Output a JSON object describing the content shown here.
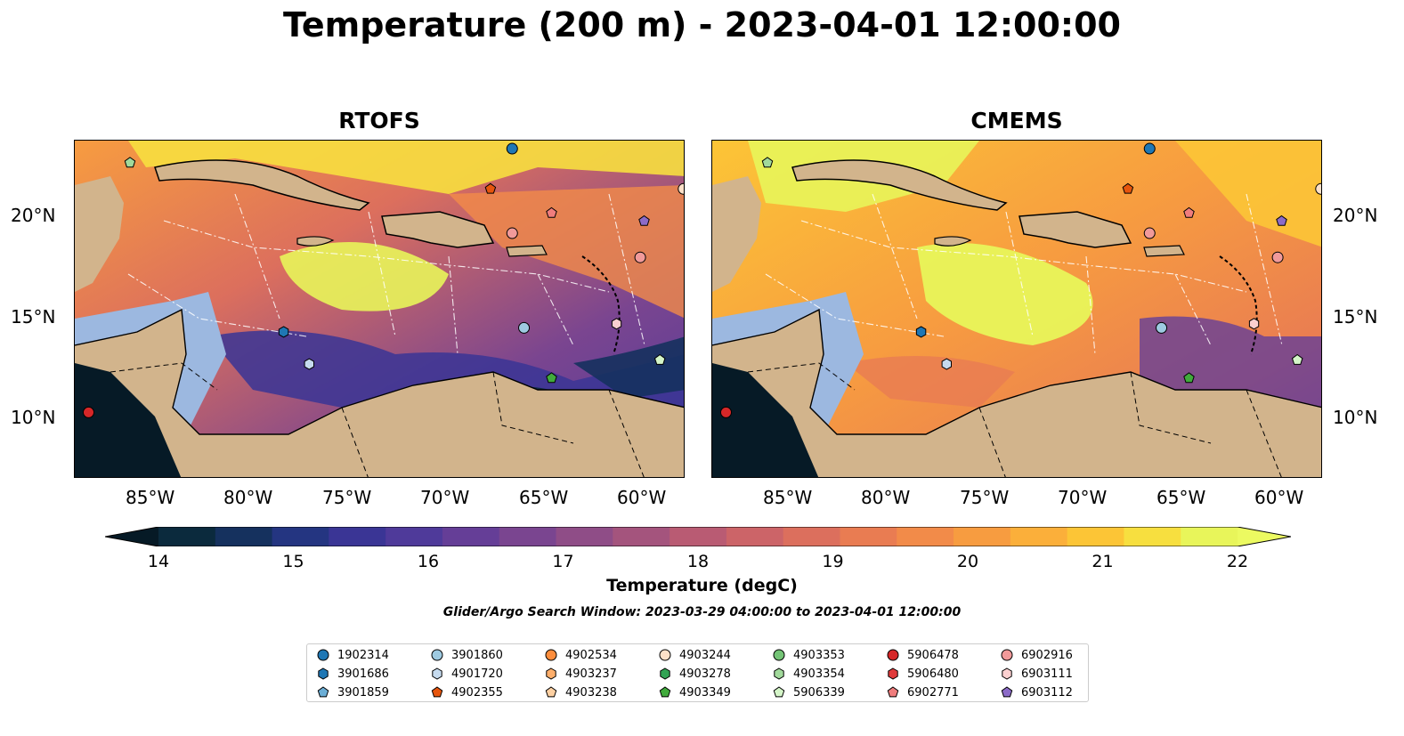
{
  "title": "Temperature (200 m) - 2023-04-01 12:00:00",
  "panels": [
    {
      "title": "RTOFS"
    },
    {
      "title": "CMEMS"
    }
  ],
  "lat_labels": [
    "20°N",
    "15°N",
    "10°N"
  ],
  "lon_labels": [
    "85°W",
    "80°W",
    "75°W",
    "70°W",
    "65°W",
    "60°W"
  ],
  "colorbar": {
    "label": "Temperature (degC)",
    "ticks": [
      "14",
      "15",
      "16",
      "17",
      "18",
      "19",
      "20",
      "21",
      "22"
    ],
    "colors": [
      "#0b2a3d",
      "#15315e",
      "#243581",
      "#3a3595",
      "#4f3a9a",
      "#653e97",
      "#7a4590",
      "#8f4d87",
      "#a4547d",
      "#b95b73",
      "#cc6468",
      "#dc6f5d",
      "#e97c52",
      "#f28b49",
      "#f79c40",
      "#fbaf3a",
      "#fcc536",
      "#f7df3f",
      "#e8f55a"
    ],
    "under_color": "#061a26",
    "over_color": "#ecfa61"
  },
  "search_window": "Glider/Argo Search Window: 2023-03-29 04:00:00 to 2023-04-01 12:00:00",
  "legend": [
    {
      "id": "1902314",
      "marker": "circle",
      "color": "#1f77b4"
    },
    {
      "id": "3901686",
      "marker": "hexagon",
      "color": "#1f77b4"
    },
    {
      "id": "3901859",
      "marker": "pentagon",
      "color": "#6baed6"
    },
    {
      "id": "3901860",
      "marker": "circle",
      "color": "#9ecae1"
    },
    {
      "id": "4901720",
      "marker": "hexagon",
      "color": "#c6dbef"
    },
    {
      "id": "4902355",
      "marker": "pentagon",
      "color": "#e6550d"
    },
    {
      "id": "4902534",
      "marker": "circle",
      "color": "#fd8d3c"
    },
    {
      "id": "4903237",
      "marker": "hexagon",
      "color": "#fdae6b"
    },
    {
      "id": "4903238",
      "marker": "pentagon",
      "color": "#fdd0a2"
    },
    {
      "id": "4903244",
      "marker": "circle",
      "color": "#fde0c8"
    },
    {
      "id": "4903278",
      "marker": "hexagon",
      "color": "#31a354"
    },
    {
      "id": "4903349",
      "marker": "pentagon",
      "color": "#41ab3c"
    },
    {
      "id": "4903353",
      "marker": "circle",
      "color": "#74c476"
    },
    {
      "id": "4903354",
      "marker": "hexagon",
      "color": "#a1d99b"
    },
    {
      "id": "5906339",
      "marker": "pentagon",
      "color": "#d4f5c8"
    },
    {
      "id": "5906478",
      "marker": "circle",
      "color": "#d62728"
    },
    {
      "id": "5906480",
      "marker": "hexagon",
      "color": "#e0393a"
    },
    {
      "id": "6902771",
      "marker": "pentagon",
      "color": "#f07d7d"
    },
    {
      "id": "6902916",
      "marker": "circle",
      "color": "#f19a9a"
    },
    {
      "id": "6903111",
      "marker": "hexagon",
      "color": "#fbd0d0"
    },
    {
      "id": "6903112",
      "marker": "pentagon",
      "color": "#8c6bc8"
    }
  ],
  "floats_on_map": [
    {
      "marker": "pentagon",
      "color": "#a1d99b",
      "lon": -86.2,
      "lat": 22.7
    },
    {
      "marker": "circle",
      "color": "#1f77b4",
      "lon": -66.8,
      "lat": 23.4
    },
    {
      "marker": "pentagon",
      "color": "#e6550d",
      "lon": -67.9,
      "lat": 21.4
    },
    {
      "marker": "pentagon",
      "color": "#f07d7d",
      "lon": -64.8,
      "lat": 20.2
    },
    {
      "marker": "pentagon",
      "color": "#8c6bc8",
      "lon": -60.1,
      "lat": 19.8
    },
    {
      "marker": "circle",
      "color": "#f19a9a",
      "lon": -66.8,
      "lat": 19.2
    },
    {
      "marker": "circle",
      "color": "#f19a9a",
      "lon": -60.3,
      "lat": 18.0
    },
    {
      "marker": "circle",
      "color": "#fde0c8",
      "lon": -58.1,
      "lat": 21.4
    },
    {
      "marker": "circle",
      "color": "#9ecae1",
      "lon": -66.2,
      "lat": 14.5
    },
    {
      "marker": "hexagon",
      "color": "#fbd0d0",
      "lon": -61.5,
      "lat": 14.7
    },
    {
      "marker": "hexagon",
      "color": "#1f77b4",
      "lon": -78.4,
      "lat": 14.3
    },
    {
      "marker": "hexagon",
      "color": "#c6dbef",
      "lon": -77.1,
      "lat": 12.7
    },
    {
      "marker": "pentagon",
      "color": "#41ab3c",
      "lon": -64.8,
      "lat": 12.0
    },
    {
      "marker": "pentagon",
      "color": "#d4f5c8",
      "lon": -59.3,
      "lat": 12.9
    },
    {
      "marker": "circle",
      "color": "#d62728",
      "lon": -88.3,
      "lat": 10.3
    }
  ]
}
